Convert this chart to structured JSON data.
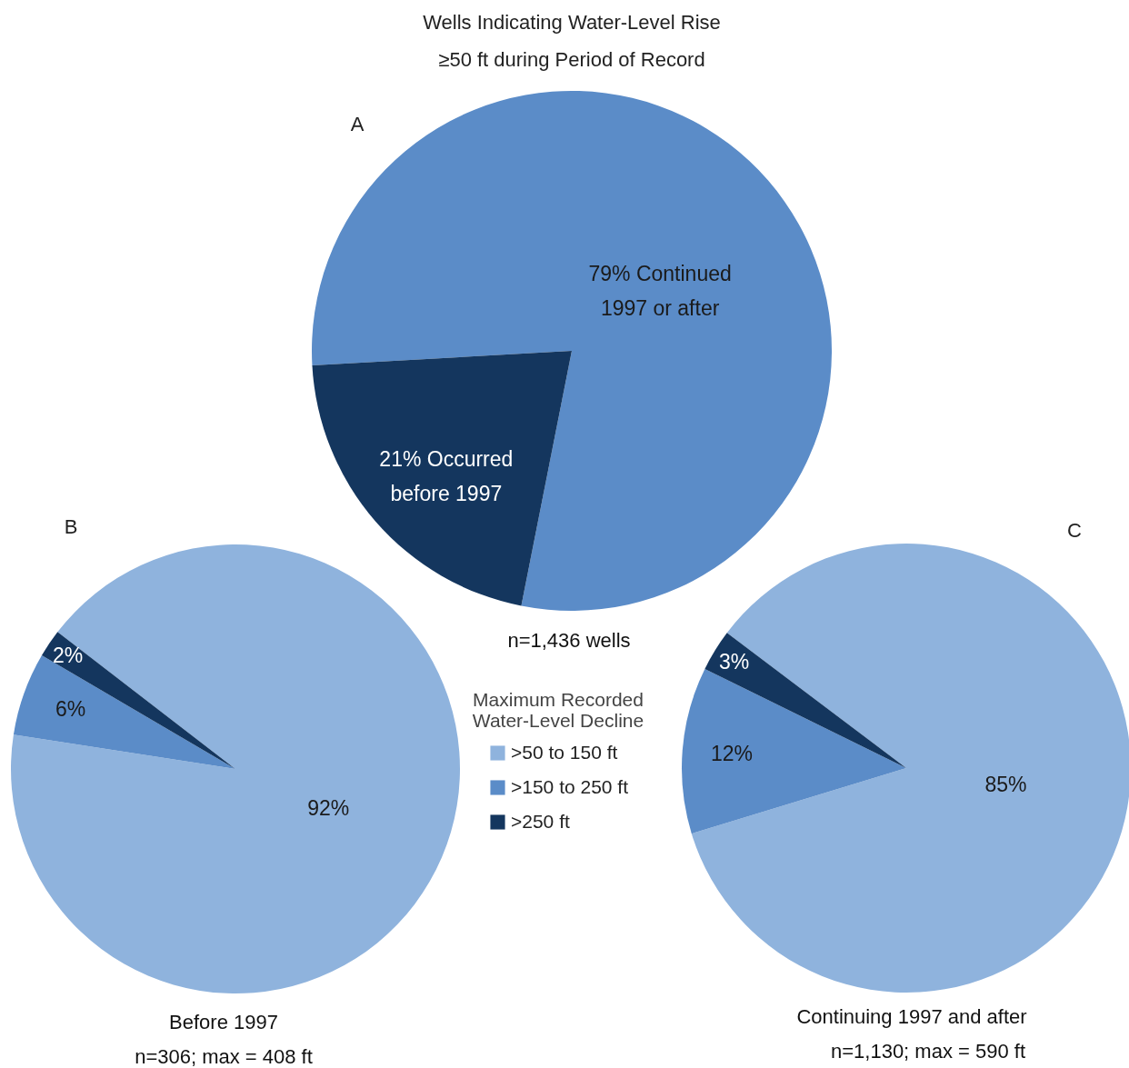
{
  "chart_data": [
    {
      "type": "pie",
      "title": "Wells Indicating Water-Level Rise ≥50 ft during Period of Record",
      "categories": [
        null,
        null
      ],
      "values": [
        79,
        21
      ],
      "colors": [
        "#5b8cc8",
        "#14365e"
      ],
      "value_labels": [
        "79% Continued 1997 or after",
        "21% Occurred before 1997"
      ],
      "annotations": [
        "A",
        "n=1,436 wells"
      ]
    },
    {
      "type": "pie",
      "title": "Before 1997",
      "subtitle": "n=306; max = 408 ft",
      "legend_title": "Maximum Recorded Water-Level Decline",
      "categories": [
        ">50 to 150 ft",
        ">150 to 250 ft",
        ">250 ft"
      ],
      "values": [
        92,
        6,
        2
      ],
      "colors": [
        "#8fb3dd",
        "#5b8cc8",
        "#14365e"
      ],
      "value_labels": [
        "92%",
        "6%",
        "2%"
      ],
      "annotations": [
        "B"
      ],
      "legend": "right"
    },
    {
      "type": "pie",
      "title": "Continuing 1997 and after",
      "subtitle": "n=1,130; max = 590 ft",
      "categories": [
        null,
        null,
        null
      ],
      "values": [
        85,
        12,
        3
      ],
      "colors": [
        "#8fb3dd",
        "#5b8cc8",
        "#14365e"
      ],
      "value_labels": [
        "85%",
        "12%",
        "3%"
      ],
      "annotations": [
        "C"
      ]
    }
  ]
}
